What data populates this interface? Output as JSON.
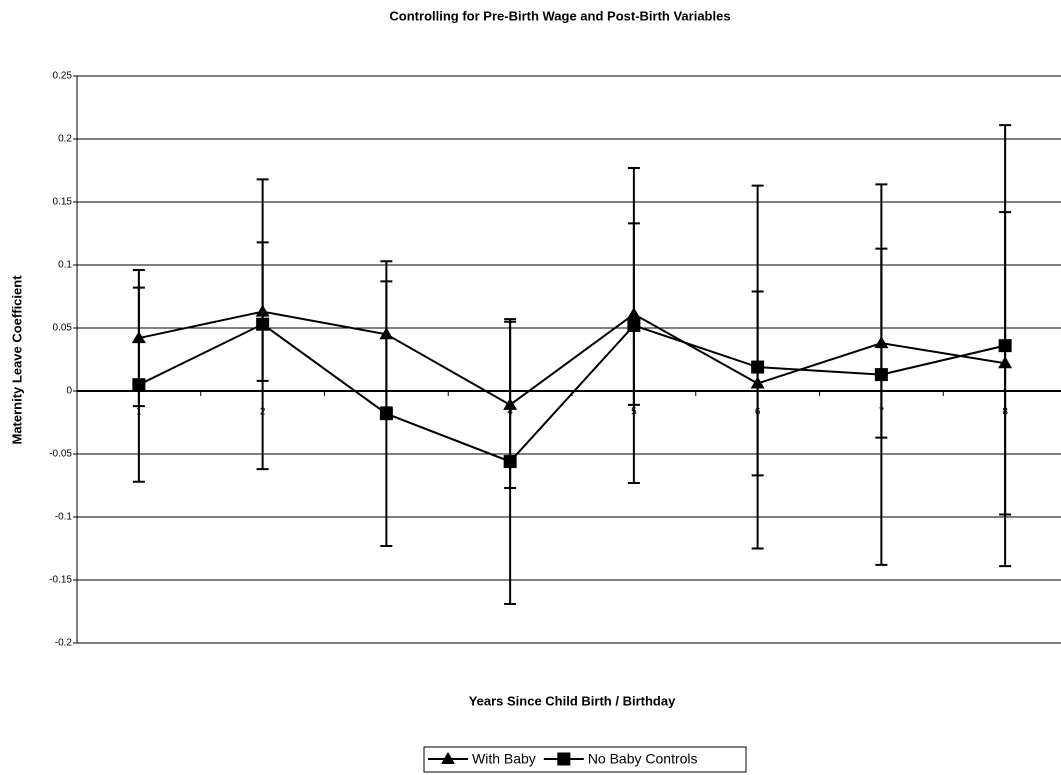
{
  "chart_data": {
    "type": "line",
    "title": "Controlling for Pre-Birth Wage and Post-Birth Variables",
    "x_label": "Years Since Child Birth / Birthday",
    "y_label": "Maternity Leave Coefficient",
    "categories": [
      "1",
      "2",
      "3",
      "4",
      "5",
      "6",
      "7",
      "8"
    ],
    "series": [
      {
        "name": "With Baby",
        "color": "#000000",
        "marker": "triangle",
        "values": [
          0.042,
          0.063,
          0.045,
          -0.011,
          0.061,
          0.006,
          0.038,
          0.022
        ],
        "errors": [
          0.054,
          0.055,
          0.058,
          0.066,
          0.072,
          0.073,
          0.075,
          0.12
        ]
      },
      {
        "name": "No Baby Controls",
        "color": "#000000",
        "marker": "square",
        "values": [
          0.005,
          0.053,
          -0.018,
          -0.056,
          0.052,
          0.019,
          0.013,
          0.036
        ],
        "errors": [
          0.077,
          0.115,
          0.105,
          0.113,
          0.125,
          0.144,
          0.151,
          0.175
        ]
      }
    ],
    "ylim": [
      -0.2,
      0.25
    ],
    "yticks": [
      -0.2,
      -0.15,
      -0.1,
      -0.05,
      0,
      0.05,
      0.1,
      0.15,
      0.2,
      0.25
    ],
    "grid": true,
    "legend": "bottom"
  }
}
